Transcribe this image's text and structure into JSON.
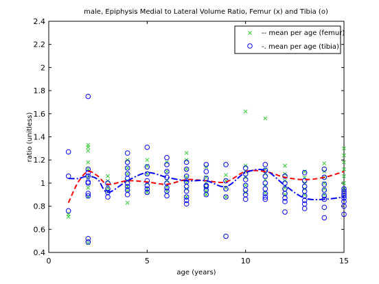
{
  "chart_data": {
    "type": "scatter",
    "title": "male, Epiphysis Medial to Lateral Volume Ratio, Femur (x) and Tibia (o)",
    "xlabel": "age (years)",
    "ylabel": "ratio (unitless)",
    "xlim": [
      0,
      15
    ],
    "ylim": [
      0.4,
      2.4
    ],
    "xticks": [
      0,
      5,
      10,
      15
    ],
    "xtick_labels": [
      "0",
      "5",
      "10",
      "15"
    ],
    "yticks": [
      0.4,
      0.6,
      0.8,
      1.0,
      1.2,
      1.4,
      1.6,
      1.8,
      2.0,
      2.2,
      2.4
    ],
    "ytick_labels": [
      "0.4",
      "0.6",
      "0.8",
      "1",
      "1.2",
      "1.4",
      "1.6",
      "1.8",
      "2",
      "2.2",
      "2.4"
    ],
    "grid": false,
    "legend_position": "top-right",
    "legend": [
      {
        "label": "-- mean per age (femur)",
        "marker": "x",
        "color": "#33cc33"
      },
      {
        "label": "-. mean per age (tibia)",
        "marker": "o",
        "color": "#0000ff"
      }
    ],
    "series": [
      {
        "kind": "scatter",
        "marker": "x",
        "color": "#33cc33",
        "x": [
          1,
          1,
          2,
          2,
          2,
          2,
          2,
          2,
          2,
          2,
          2,
          3,
          3,
          3,
          3,
          4,
          4,
          4,
          4,
          4,
          4,
          4,
          5,
          5,
          5,
          5,
          5,
          5,
          6,
          6,
          6,
          6,
          6,
          7,
          7,
          7,
          7,
          7,
          7,
          7,
          8,
          8,
          8,
          8,
          8,
          8,
          9,
          9,
          9,
          9,
          10,
          10,
          10,
          10,
          10,
          10,
          11,
          11,
          11,
          11,
          11,
          11,
          12,
          12,
          12,
          12,
          12,
          13,
          13,
          13,
          13,
          13,
          14,
          14,
          14,
          14,
          14,
          14,
          15,
          15,
          15,
          15,
          15,
          15,
          15
        ],
        "y": [
          0.71,
          0.73,
          1.33,
          1.31,
          1.28,
          1.18,
          1.12,
          1.05,
          0.96,
          0.88,
          0.48,
          1.06,
          1.02,
          0.96,
          0.93,
          1.2,
          1.13,
          1.08,
          1.02,
          0.97,
          0.93,
          0.83,
          1.2,
          1.15,
          1.08,
          1.0,
          0.95,
          0.92,
          1.18,
          1.1,
          1.02,
          0.97,
          0.93,
          1.26,
          1.2,
          1.12,
          1.05,
          1.0,
          0.95,
          0.88,
          1.14,
          1.05,
          1.0,
          0.96,
          0.93,
          0.9,
          1.07,
          1.02,
          0.96,
          0.88,
          1.62,
          1.15,
          1.1,
          1.05,
          0.98,
          0.92,
          1.56,
          1.12,
          1.08,
          1.03,
          0.98,
          0.92,
          1.15,
          1.08,
          1.02,
          0.96,
          0.9,
          1.1,
          1.05,
          1.0,
          0.95,
          0.9,
          1.17,
          1.1,
          1.05,
          1.0,
          0.95,
          0.9,
          1.3,
          1.24,
          1.18,
          1.12,
          1.06,
          1.0,
          0.95
        ]
      },
      {
        "kind": "scatter",
        "marker": "o",
        "color": "#0000ff",
        "x": [
          1,
          1,
          1,
          2,
          2,
          2,
          2,
          2,
          2,
          2,
          2,
          2,
          2,
          3,
          3,
          3,
          3,
          4,
          4,
          4,
          4,
          4,
          4,
          4,
          4,
          4,
          5,
          5,
          5,
          5,
          5,
          5,
          5,
          6,
          6,
          6,
          6,
          6,
          6,
          6,
          6,
          7,
          7,
          7,
          7,
          7,
          7,
          7,
          7,
          7,
          8,
          8,
          8,
          8,
          8,
          8,
          8,
          9,
          9,
          9,
          9,
          9,
          10,
          10,
          10,
          10,
          10,
          10,
          10,
          11,
          11,
          11,
          11,
          11,
          11,
          11,
          11,
          12,
          12,
          12,
          12,
          12,
          12,
          12,
          13,
          13,
          13,
          13,
          13,
          13,
          13,
          13,
          14,
          14,
          14,
          14,
          14,
          14,
          14,
          14,
          15,
          15,
          15,
          15,
          15,
          15,
          15,
          15
        ],
        "y": [
          1.27,
          1.06,
          0.76,
          1.75,
          1.12,
          1.09,
          1.06,
          1.01,
          0.91,
          0.89,
          0.52,
          0.49,
          1.0,
          1.0,
          0.95,
          0.92,
          0.88,
          1.26,
          1.18,
          1.13,
          1.08,
          1.04,
          1.0,
          0.97,
          0.94,
          0.9,
          1.31,
          1.14,
          1.08,
          1.02,
          0.98,
          0.95,
          0.92,
          1.22,
          1.16,
          1.1,
          1.05,
          1.0,
          0.96,
          0.93,
          0.89,
          1.18,
          1.12,
          1.06,
          1.01,
          0.97,
          0.93,
          0.88,
          0.85,
          0.82,
          1.16,
          1.1,
          1.04,
          0.98,
          0.94,
          0.9,
          0.97,
          1.16,
          1.02,
          0.95,
          0.88,
          0.54,
          1.13,
          1.08,
          1.03,
          0.98,
          0.94,
          0.9,
          0.86,
          1.16,
          1.11,
          1.06,
          1.0,
          0.95,
          0.91,
          0.88,
          0.86,
          1.06,
          1.0,
          0.95,
          0.91,
          0.87,
          0.84,
          0.75,
          1.09,
          1.02,
          0.97,
          0.93,
          0.89,
          0.85,
          0.82,
          0.78,
          1.12,
          1.05,
          0.99,
          0.94,
          0.89,
          0.86,
          0.79,
          0.7,
          0.95,
          0.93,
          0.91,
          0.89,
          0.87,
          0.84,
          0.8,
          0.73
        ]
      },
      {
        "kind": "line",
        "style": "dashed",
        "color": "#ff0000",
        "x": [
          1,
          1.5,
          2,
          2.5,
          3,
          4,
          5,
          6,
          7,
          8,
          9,
          10,
          11,
          12,
          13,
          14,
          15
        ],
        "y": [
          0.83,
          1.01,
          1.1,
          1.06,
          0.99,
          1.02,
          1.01,
          0.99,
          1.03,
          1.02,
          1.01,
          1.1,
          1.1,
          1.05,
          1.03,
          1.05,
          1.1
        ]
      },
      {
        "kind": "line",
        "style": "dashdot",
        "color": "#0000ff",
        "x": [
          1,
          1.5,
          2,
          2.5,
          3,
          4,
          5,
          6,
          7,
          8,
          9,
          10,
          11,
          12,
          13,
          14,
          15
        ],
        "y": [
          1.04,
          1.04,
          1.06,
          1.03,
          0.92,
          1.02,
          1.09,
          1.05,
          1.02,
          1.02,
          0.97,
          1.09,
          1.11,
          0.98,
          0.87,
          0.86,
          0.88
        ]
      }
    ]
  }
}
